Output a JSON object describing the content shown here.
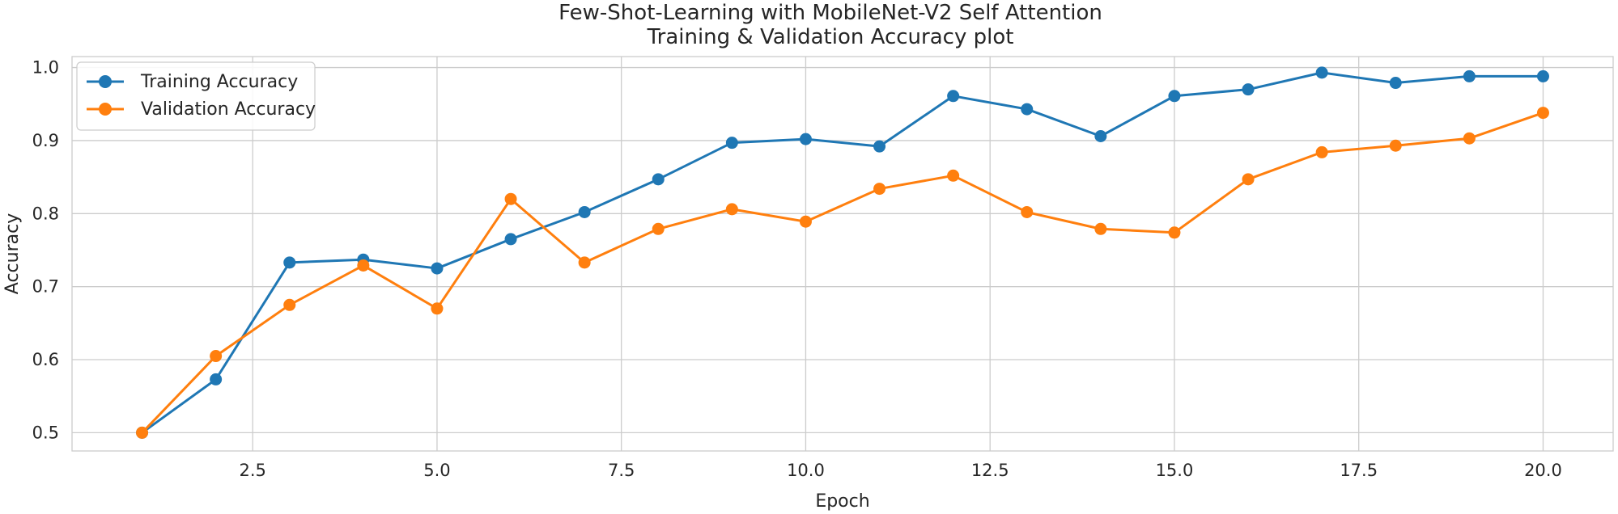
{
  "chart_data": {
    "type": "line",
    "title_lines": [
      "Few-Shot-Learning with MobileNet-V2 Self Attention",
      "Training & Validation Accuracy plot"
    ],
    "xlabel": "Epoch",
    "ylabel": "Accuracy",
    "xlim": [
      0.05,
      20.95
    ],
    "ylim": [
      0.475,
      1.015
    ],
    "x_ticks": [
      2.5,
      5.0,
      7.5,
      10.0,
      12.5,
      15.0,
      17.5,
      20.0
    ],
    "x_tick_labels": [
      "2.5",
      "5.0",
      "7.5",
      "10.0",
      "12.5",
      "15.0",
      "17.5",
      "20.0"
    ],
    "y_ticks": [
      0.5,
      0.6,
      0.7,
      0.8,
      0.9,
      1.0
    ],
    "y_tick_labels": [
      "0.5",
      "0.6",
      "0.7",
      "0.8",
      "0.9",
      "1.0"
    ],
    "grid": true,
    "legend_position": "top-left",
    "x": [
      1,
      2,
      3,
      4,
      5,
      6,
      7,
      8,
      9,
      10,
      11,
      12,
      13,
      14,
      15,
      16,
      17,
      18,
      19,
      20
    ],
    "series": [
      {
        "name": "Training Accuracy",
        "color": "#1f77b4",
        "values": [
          0.5,
          0.573,
          0.733,
          0.737,
          0.725,
          0.765,
          0.802,
          0.847,
          0.897,
          0.902,
          0.892,
          0.961,
          0.943,
          0.906,
          0.961,
          0.97,
          0.993,
          0.979,
          0.988,
          0.988
        ]
      },
      {
        "name": "Validation Accuracy",
        "color": "#ff7f0e",
        "values": [
          0.5,
          0.605,
          0.675,
          0.729,
          0.67,
          0.82,
          0.733,
          0.779,
          0.806,
          0.789,
          0.834,
          0.852,
          0.802,
          0.779,
          0.774,
          0.847,
          0.884,
          0.893,
          0.903,
          0.938
        ]
      }
    ]
  }
}
